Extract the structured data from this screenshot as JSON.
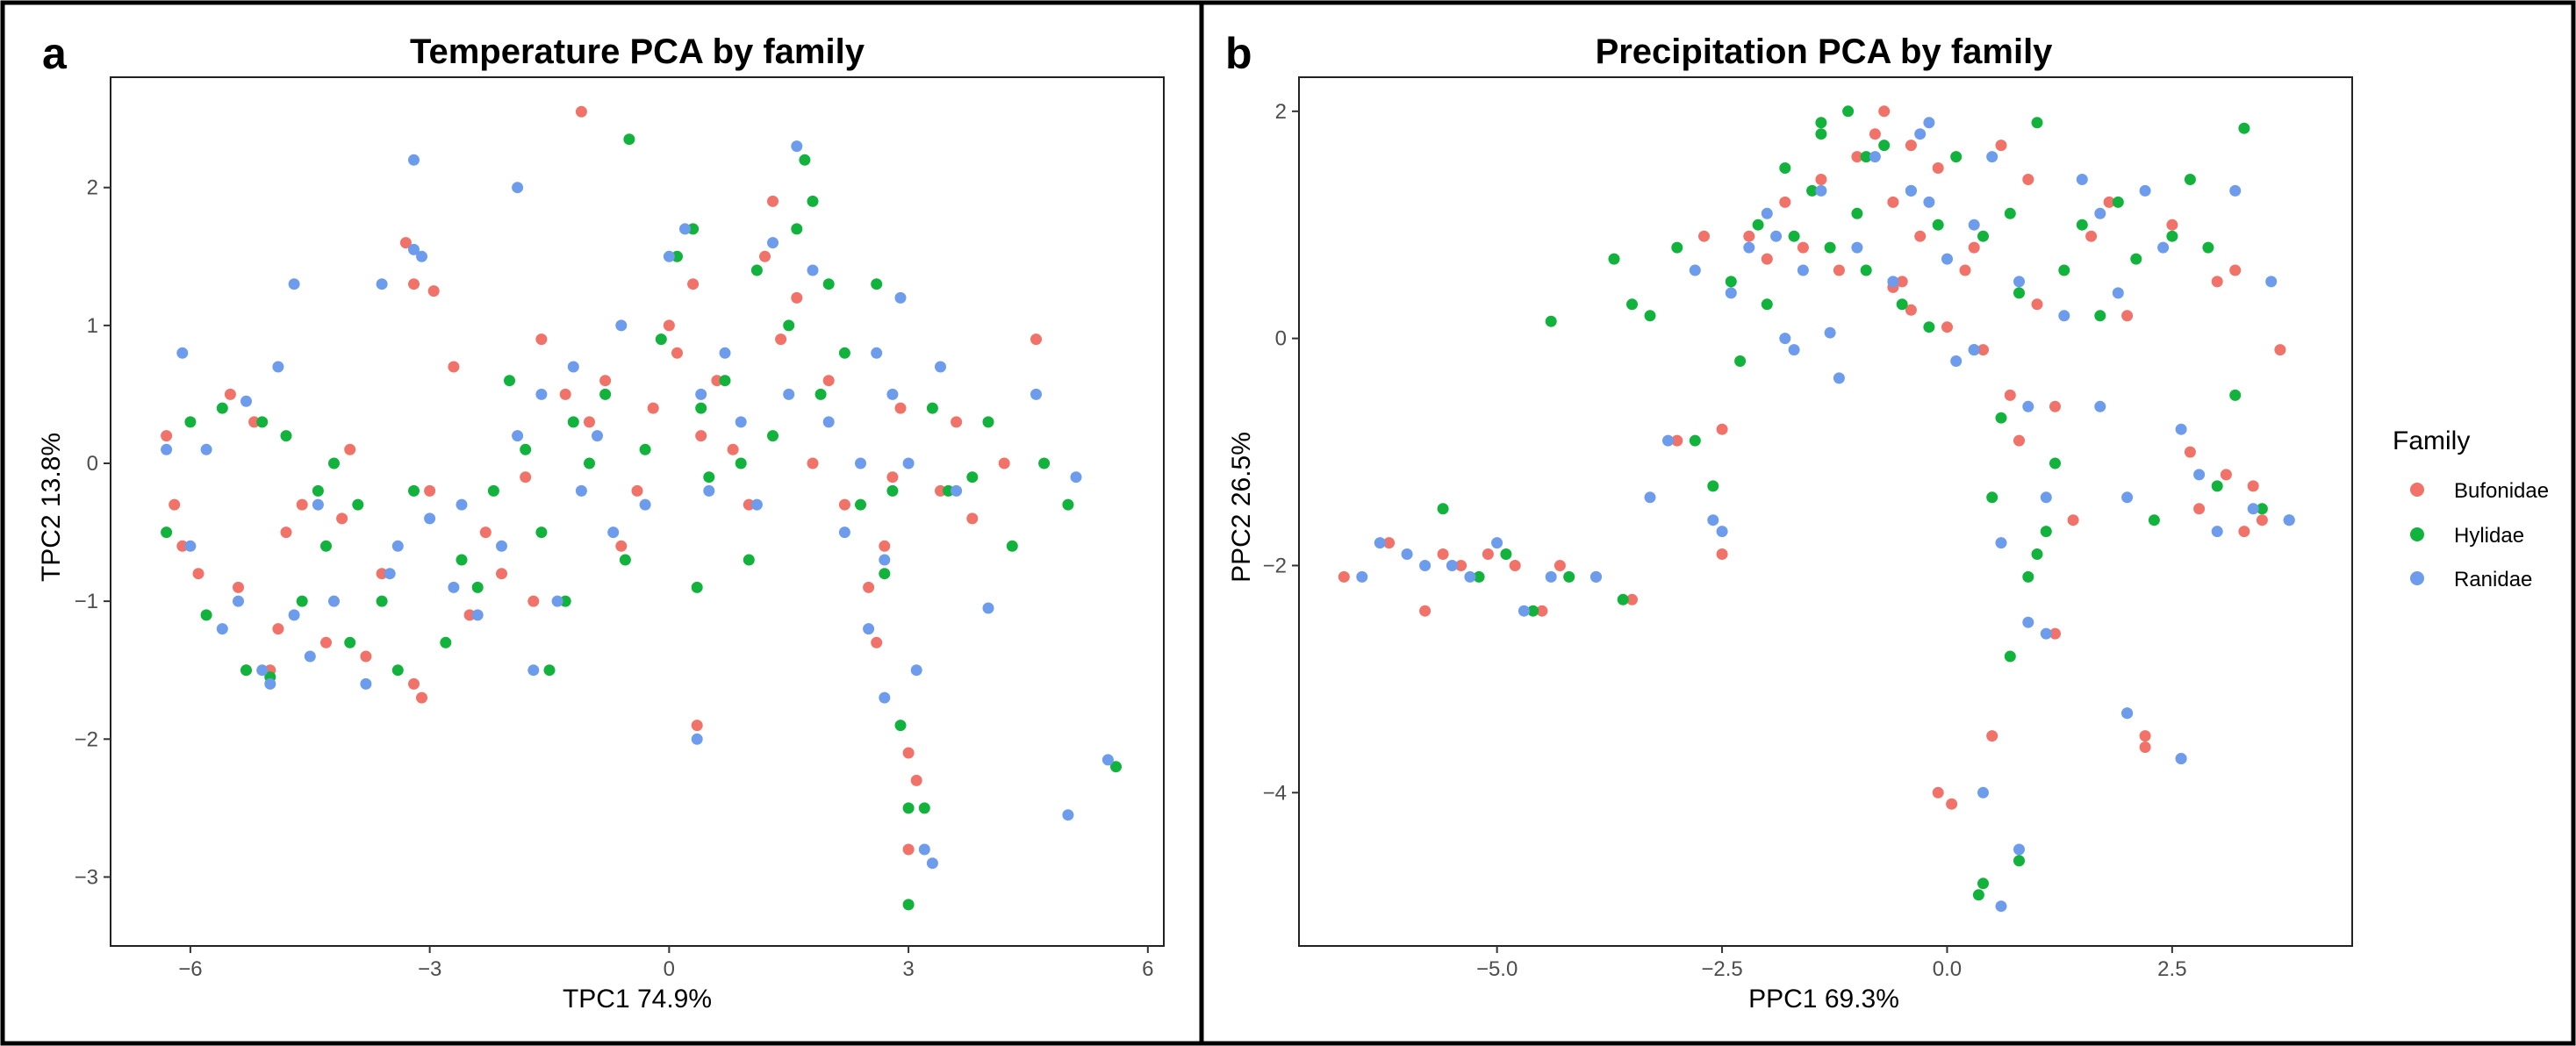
{
  "colors": {
    "Bufonidae": "#F07268",
    "Hylidae": "#12B33C",
    "Ranidae": "#6C9CEB"
  },
  "legend": {
    "title": "Family",
    "entries": [
      "Bufonidae",
      "Hylidae",
      "Ranidae"
    ]
  },
  "chart_data": [
    {
      "type": "scatter",
      "panel_letter": "a",
      "title": "Temperature PCA by family",
      "xlabel": "TPC1 74.9%",
      "ylabel": "TPC2 13.8%",
      "xlim": [
        -7.0,
        6.2
      ],
      "ylim": [
        -3.5,
        2.8
      ],
      "xticks": [
        -6,
        -3,
        0,
        3,
        6
      ],
      "xtick_labels": [
        "−6",
        "−3",
        "0",
        "3",
        "6"
      ],
      "yticks": [
        -3,
        -2,
        -1,
        0,
        1,
        2
      ],
      "ytick_labels": [
        "−3",
        "−2",
        "−1",
        "0",
        "1",
        "2"
      ],
      "grid": false,
      "series": [
        {
          "name": "Bufonidae",
          "x": [
            -6.3,
            -6.2,
            -6.1,
            -5.9,
            -5.5,
            -5.4,
            -5.3,
            -5.2,
            -4.9,
            -4.8,
            -4.6,
            -4.3,
            -4.1,
            -3.8,
            -3.6,
            -3.3,
            -3.2,
            -3.1,
            -3.0,
            -2.7,
            -2.5,
            -2.3,
            -2.1,
            -1.8,
            -1.6,
            -1.3,
            -1.1,
            -1.0,
            -0.8,
            -0.6,
            -0.4,
            -0.2,
            0.0,
            0.1,
            0.3,
            0.4,
            0.6,
            0.8,
            1.0,
            1.2,
            1.4,
            1.6,
            1.8,
            2.0,
            2.2,
            2.5,
            2.6,
            2.7,
            2.8,
            2.9,
            3.0,
            3.0,
            3.1,
            3.4,
            3.6,
            3.8,
            4.2,
            4.6,
            0.35,
            -2.95,
            -3.2,
            -5.0,
            -4.0,
            -1.7,
            1.3
          ],
          "y": [
            0.2,
            -0.3,
            -0.6,
            -0.8,
            0.5,
            -0.9,
            -1.5,
            0.3,
            -1.2,
            -0.5,
            -0.3,
            -1.3,
            -0.4,
            -1.4,
            -0.8,
            1.6,
            1.3,
            -1.7,
            -0.2,
            0.7,
            -1.1,
            -0.5,
            -0.8,
            -0.1,
            0.9,
            0.5,
            2.55,
            0.3,
            0.6,
            -0.6,
            -0.2,
            0.4,
            1.0,
            0.8,
            1.3,
            0.2,
            0.6,
            0.1,
            -0.3,
            1.5,
            0.9,
            1.2,
            0.0,
            0.6,
            -0.3,
            -0.9,
            -1.3,
            -0.6,
            -0.1,
            0.4,
            -2.1,
            -2.8,
            -2.3,
            -0.2,
            0.3,
            -0.4,
            0.0,
            0.9,
            -1.9,
            1.25,
            -1.6,
            -1.5,
            0.1,
            -1.0,
            1.9
          ]
        },
        {
          "name": "Hylidae",
          "x": [
            -6.3,
            -6.0,
            -5.8,
            -5.6,
            -5.3,
            -5.1,
            -5.0,
            -4.8,
            -4.6,
            -4.4,
            -4.3,
            -4.2,
            -4.0,
            -3.9,
            -3.6,
            -3.4,
            -3.2,
            -2.8,
            -2.6,
            -2.4,
            -2.2,
            -2.0,
            -1.8,
            -1.5,
            -1.3,
            -1.2,
            -1.0,
            -0.8,
            -0.5,
            -0.3,
            -0.1,
            0.1,
            0.3,
            0.4,
            0.5,
            0.7,
            0.9,
            1.0,
            1.1,
            1.3,
            1.5,
            1.6,
            1.7,
            1.9,
            2.0,
            2.2,
            2.4,
            2.6,
            2.7,
            2.8,
            2.9,
            3.0,
            3.0,
            3.2,
            3.3,
            3.5,
            3.8,
            4.0,
            4.3,
            4.7,
            5.0,
            5.6,
            0.35,
            -1.6,
            -0.55,
            1.8
          ],
          "y": [
            -0.5,
            0.3,
            -1.1,
            0.4,
            -1.5,
            0.3,
            -1.55,
            0.2,
            -1.0,
            -0.2,
            -0.6,
            0.0,
            -1.3,
            -0.3,
            -1.0,
            -1.5,
            -0.2,
            -1.3,
            -0.7,
            -0.9,
            -0.2,
            0.6,
            0.1,
            -1.5,
            -1.0,
            0.3,
            0.0,
            0.5,
            2.35,
            0.1,
            0.9,
            1.5,
            1.7,
            0.4,
            -0.1,
            0.6,
            0.0,
            -0.7,
            1.4,
            0.2,
            1.0,
            1.7,
            2.2,
            0.5,
            1.3,
            0.8,
            -0.3,
            1.3,
            -0.8,
            -0.2,
            -1.9,
            -2.5,
            -3.2,
            -2.5,
            0.4,
            -0.2,
            -0.1,
            0.3,
            -0.6,
            0.0,
            -0.3,
            -2.2,
            -0.9,
            -0.5,
            -0.7,
            1.9
          ]
        },
        {
          "name": "Ranidae",
          "x": [
            -6.3,
            -6.1,
            -6.0,
            -5.8,
            -5.6,
            -5.4,
            -5.3,
            -5.1,
            -5.0,
            -4.9,
            -4.7,
            -4.5,
            -4.4,
            -4.2,
            -3.8,
            -3.6,
            -3.5,
            -3.4,
            -3.2,
            -3.1,
            -3.0,
            -2.7,
            -2.6,
            -2.4,
            -2.1,
            -1.9,
            -1.7,
            -1.6,
            -1.4,
            -1.2,
            -1.1,
            -0.9,
            -0.7,
            -0.6,
            -0.3,
            0.0,
            0.2,
            0.4,
            0.5,
            0.7,
            0.9,
            1.1,
            1.3,
            1.5,
            1.6,
            1.8,
            2.0,
            2.2,
            2.4,
            2.5,
            2.6,
            2.7,
            2.8,
            2.9,
            3.0,
            3.1,
            3.2,
            3.3,
            3.4,
            3.6,
            4.0,
            4.6,
            5.0,
            5.1,
            5.5,
            -4.7,
            -3.2,
            -1.9,
            0.35,
            2.7
          ],
          "y": [
            0.1,
            0.8,
            -0.6,
            0.1,
            -1.2,
            -1.0,
            0.45,
            -1.5,
            -1.6,
            0.7,
            -1.1,
            -1.4,
            -0.3,
            -1.0,
            -1.6,
            1.3,
            -0.8,
            -0.6,
            2.2,
            1.5,
            -0.4,
            -0.9,
            -0.3,
            -1.1,
            -0.6,
            0.2,
            -1.5,
            0.5,
            -1.0,
            0.7,
            -0.2,
            0.2,
            -0.5,
            1.0,
            -0.3,
            1.5,
            1.7,
            0.5,
            -0.2,
            0.8,
            0.3,
            -0.3,
            1.6,
            0.5,
            2.3,
            1.4,
            0.3,
            -0.5,
            0.0,
            -1.2,
            0.8,
            -0.7,
            0.5,
            1.2,
            0.0,
            -1.5,
            -2.8,
            -2.9,
            0.7,
            -0.2,
            -1.05,
            0.5,
            -2.55,
            -0.1,
            -2.15,
            1.3,
            1.55,
            2.0,
            -2.0,
            -1.7
          ]
        }
      ]
    },
    {
      "type": "scatter",
      "panel_letter": "b",
      "title": "Precipitation PCA by family",
      "xlabel": "PPC1 69.3%",
      "ylabel": "PPC2 26.5%",
      "xlim": [
        -7.2,
        4.5
      ],
      "ylim": [
        -5.35,
        2.3
      ],
      "xticks": [
        -5.0,
        -2.5,
        0.0,
        2.5
      ],
      "xtick_labels": [
        "−5.0",
        "−2.5",
        "0.0",
        "2.5"
      ],
      "yticks": [
        -4,
        -2,
        0,
        2
      ],
      "ytick_labels": [
        "−4",
        "−2",
        "0",
        "2"
      ],
      "grid": false,
      "series": [
        {
          "name": "Bufonidae",
          "x": [
            -6.7,
            -6.2,
            -5.8,
            -5.6,
            -5.4,
            -5.1,
            -4.8,
            -4.5,
            -4.3,
            -3.9,
            -3.5,
            -3.0,
            -2.7,
            -2.5,
            -2.2,
            -2.0,
            -1.8,
            -1.6,
            -1.4,
            -1.2,
            -1.0,
            -0.8,
            -0.7,
            -0.6,
            -0.5,
            -0.4,
            -0.3,
            -0.1,
            0.0,
            0.2,
            0.3,
            0.4,
            0.6,
            0.7,
            0.8,
            0.9,
            1.0,
            1.2,
            1.4,
            1.6,
            1.8,
            2.0,
            2.2,
            2.5,
            2.7,
            2.8,
            3.0,
            3.1,
            3.2,
            3.3,
            3.4,
            3.5,
            3.7,
            -0.1,
            0.05,
            0.5,
            1.2,
            2.2,
            2.6,
            -2.5,
            -0.6,
            -0.4
          ],
          "y": [
            -2.1,
            -1.8,
            -2.4,
            -1.9,
            -2.0,
            -1.9,
            -2.0,
            -2.4,
            -2.0,
            -2.1,
            -2.3,
            -0.9,
            0.9,
            -1.9,
            0.9,
            0.7,
            1.2,
            0.8,
            1.4,
            0.6,
            1.6,
            1.8,
            2.0,
            1.2,
            0.5,
            1.7,
            0.9,
            1.5,
            0.1,
            0.6,
            0.8,
            -0.1,
            1.7,
            -0.5,
            -0.9,
            1.4,
            0.3,
            -0.6,
            -1.6,
            0.9,
            1.2,
            0.2,
            -3.6,
            1.0,
            -1.0,
            -1.5,
            0.5,
            -1.2,
            0.6,
            -1.7,
            -1.3,
            -1.6,
            -0.1,
            -4.0,
            -4.1,
            -3.5,
            -2.6,
            -3.5,
            -3.7,
            -0.8,
            0.45,
            0.25
          ],
          "r": 6
        },
        {
          "name": "Hylidae",
          "x": [
            -5.6,
            -5.2,
            -4.9,
            -4.6,
            -4.2,
            -3.6,
            -3.5,
            -3.3,
            -3.0,
            -2.8,
            -2.6,
            -2.4,
            -2.3,
            -2.1,
            -2.0,
            -1.8,
            -1.7,
            -1.5,
            -1.4,
            -1.3,
            -1.1,
            -1.0,
            -0.9,
            -0.7,
            -0.5,
            -0.4,
            -0.2,
            -0.1,
            0.1,
            0.3,
            0.4,
            0.5,
            0.6,
            0.7,
            0.8,
            0.9,
            1.0,
            1.1,
            1.3,
            1.5,
            1.7,
            1.9,
            2.1,
            2.3,
            2.5,
            2.7,
            2.9,
            3.0,
            3.2,
            3.3,
            3.5,
            3.8,
            0.4,
            0.7,
            0.8,
            1.0,
            1.2,
            2.0,
            -4.4,
            -3.7,
            -1.4,
            -0.9,
            0.35
          ],
          "y": [
            -1.5,
            -2.1,
            -1.9,
            -2.4,
            -2.1,
            -2.3,
            0.3,
            0.2,
            0.8,
            -0.9,
            -1.3,
            0.5,
            -0.2,
            1.0,
            0.3,
            1.5,
            0.9,
            1.3,
            1.8,
            0.8,
            2.0,
            1.1,
            0.6,
            1.7,
            0.3,
            1.3,
            0.1,
            1.0,
            1.6,
            -0.1,
            0.9,
            -1.4,
            -0.7,
            1.1,
            0.4,
            -2.1,
            1.9,
            -1.7,
            0.6,
            1.0,
            0.2,
            1.2,
            0.7,
            -1.6,
            0.9,
            1.4,
            0.8,
            -1.3,
            -0.5,
            1.85,
            -1.5,
            -1.6,
            -4.8,
            -2.8,
            -4.6,
            -1.9,
            -1.1,
            -3.3,
            0.15,
            0.7,
            1.9,
            1.6,
            -4.9
          ],
          "r": 6
        },
        {
          "name": "Ranidae",
          "x": [
            -6.5,
            -6.3,
            -6.0,
            -5.8,
            -5.5,
            -5.3,
            -5.0,
            -4.7,
            -4.4,
            -3.9,
            -3.3,
            -3.1,
            -2.8,
            -2.6,
            -2.4,
            -2.2,
            -2.0,
            -1.8,
            -1.6,
            -1.4,
            -1.2,
            -1.0,
            -0.8,
            -0.6,
            -0.4,
            -0.2,
            0.0,
            0.1,
            0.3,
            0.5,
            0.6,
            0.8,
            0.9,
            1.1,
            1.3,
            1.5,
            1.7,
            1.9,
            2.0,
            2.2,
            2.4,
            2.6,
            2.8,
            3.0,
            3.2,
            3.4,
            3.6,
            3.8,
            -2.5,
            -1.9,
            -1.7,
            -1.3,
            -0.3,
            0.4,
            0.6,
            0.8,
            0.9,
            1.1,
            1.7,
            2.0,
            2.6,
            -0.2,
            0.3
          ],
          "y": [
            -2.1,
            -1.8,
            -1.9,
            -2.0,
            -2.0,
            -2.1,
            -1.8,
            -2.4,
            -2.1,
            -2.1,
            -1.4,
            -0.9,
            0.6,
            -1.6,
            0.4,
            0.8,
            1.1,
            0.0,
            0.6,
            1.3,
            -0.35,
            0.8,
            1.6,
            0.5,
            1.3,
            1.9,
            0.7,
            -0.2,
            1.0,
            1.6,
            -1.8,
            0.5,
            -0.6,
            -2.6,
            0.2,
            1.4,
            -0.6,
            0.4,
            -1.4,
            1.3,
            0.8,
            -0.8,
            -1.2,
            -1.7,
            1.3,
            -1.5,
            0.5,
            -1.6,
            -1.7,
            0.9,
            -0.1,
            0.05,
            1.8,
            -4.0,
            -5.0,
            -4.5,
            -2.5,
            -1.4,
            1.1,
            -3.3,
            -3.7,
            1.2,
            -0.1
          ],
          "r": 6
        }
      ]
    }
  ]
}
